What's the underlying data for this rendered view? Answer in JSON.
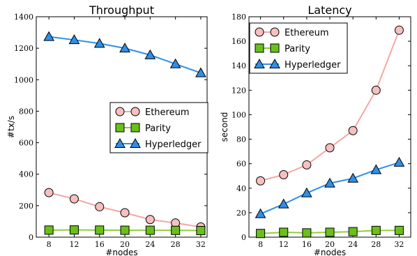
{
  "chart_data": [
    {
      "type": "line",
      "title": "Throughput",
      "xlabel": "#nodes",
      "ylabel": "#tx/s",
      "x": [
        8,
        12,
        16,
        20,
        24,
        28,
        32
      ],
      "xlim": [
        6,
        33
      ],
      "ylim": [
        0,
        1400
      ],
      "yticks": [
        0,
        200,
        400,
        600,
        800,
        1000,
        1200,
        1400
      ],
      "legend_position": "center-right",
      "grid": false,
      "series": [
        {
          "name": "Ethereum",
          "color": "#f4a6a6",
          "marker": "circle",
          "marker_fill": "#f6c0c0",
          "values": [
            283,
            243,
            193,
            155,
            112,
            90,
            65
          ]
        },
        {
          "name": "Parity",
          "color": "#8fcf3c",
          "marker": "square",
          "marker_fill": "#6abf1a",
          "values": [
            45,
            46,
            45,
            44,
            44,
            43,
            42
          ]
        },
        {
          "name": "Hyperledger",
          "color": "#2f8fe8",
          "marker": "triangle",
          "marker_fill": "#2f8fe8",
          "values": [
            1273,
            1253,
            1230,
            1200,
            1157,
            1100,
            1043
          ]
        }
      ]
    },
    {
      "type": "line",
      "title": "Latency",
      "xlabel": "#nodes",
      "ylabel": "second",
      "x": [
        8,
        12,
        16,
        20,
        24,
        28,
        32
      ],
      "xlim": [
        6,
        34
      ],
      "ylim": [
        0,
        180
      ],
      "yticks": [
        0,
        20,
        40,
        60,
        80,
        100,
        120,
        140,
        160,
        180
      ],
      "legend_position": "top-left",
      "grid": false,
      "series": [
        {
          "name": "Ethereum",
          "color": "#f4a6a6",
          "marker": "circle",
          "marker_fill": "#f6c0c0",
          "values": [
            46,
            51,
            59,
            73,
            87,
            120,
            169
          ]
        },
        {
          "name": "Parity",
          "color": "#8fcf3c",
          "marker": "square",
          "marker_fill": "#6abf1a",
          "values": [
            3,
            4,
            3.5,
            4,
            4.5,
            5.5,
            5.5
          ]
        },
        {
          "name": "Hyperledger",
          "color": "#2f8fe8",
          "marker": "triangle",
          "marker_fill": "#2f8fe8",
          "values": [
            19,
            27,
            36,
            44,
            48,
            55,
            61
          ]
        }
      ]
    }
  ]
}
